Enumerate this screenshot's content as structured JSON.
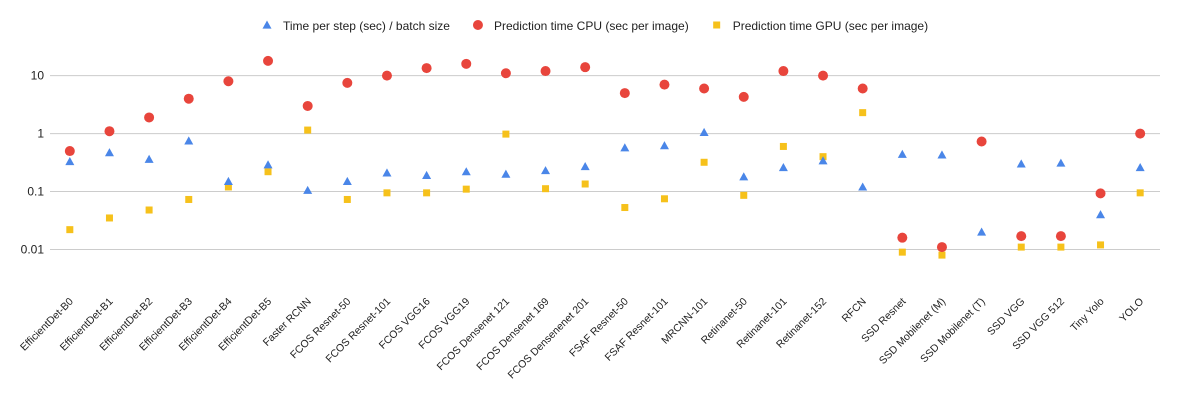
{
  "chart_data": {
    "type": "scatter",
    "title": "",
    "xlabel": "",
    "ylabel": "",
    "yscale": "log",
    "ylim": [
      0.002,
      30
    ],
    "yticks": [
      0.01,
      0.1,
      1,
      10
    ],
    "ytick_labels": [
      "0.01",
      "0.1",
      "1",
      "10"
    ],
    "grid": true,
    "legend_position": "top",
    "categories": [
      "EfficientDet-B0",
      "EfficientDet-B1",
      "EfficientDet-B2",
      "EfficientDet-B3",
      "EfficientDet-B4",
      "EfficientDet-B5",
      "Faster RCNN",
      "FCOS Resnet-50",
      "FCOS Resnet-101",
      "FCOS VGG16",
      "FCOS VGG19",
      "FCOS Densenet 121",
      "FCOS Densenet 169",
      "FCOS Densenenet 201",
      "FSAF Resnet-50",
      "FSAF Resnet-101",
      "MRCNN-101",
      "Retinanet-50",
      "Retinanet-101",
      "Retinanet-152",
      "RFCN",
      "SSD Resnet",
      "SSD Mobilenet (M)",
      "SSD Mobilenet (T)",
      "SSD VGG",
      "SSD VGG 512",
      "Tiny Yolo",
      "YOLO"
    ],
    "series": [
      {
        "name": "Time per step (sec) / batch size",
        "marker": "triangle",
        "color": "#4a86e8",
        "values": [
          0.33,
          0.47,
          0.36,
          0.75,
          0.15,
          0.29,
          0.105,
          0.15,
          0.21,
          0.19,
          0.22,
          0.2,
          0.23,
          0.27,
          0.57,
          0.62,
          1.05,
          0.18,
          0.26,
          0.34,
          0.12,
          0.44,
          0.43,
          0.02,
          0.3,
          0.31,
          0.04,
          0.26
        ]
      },
      {
        "name": "Prediction time CPU (sec per image)",
        "marker": "circle",
        "color": "#e8453c",
        "values": [
          0.5,
          1.1,
          1.9,
          4.0,
          8.0,
          18.0,
          3.0,
          7.5,
          10.0,
          13.5,
          16.0,
          11.0,
          12.0,
          14.0,
          5.0,
          7.0,
          6.0,
          4.3,
          12.0,
          10.0,
          6.0,
          0.016,
          0.011,
          0.73,
          0.017,
          0.017,
          0.093,
          1.0
        ]
      },
      {
        "name": "Prediction time GPU (sec per image)",
        "marker": "square",
        "color": "#f6c11b",
        "values": [
          0.022,
          0.035,
          0.048,
          0.073,
          0.12,
          0.22,
          1.15,
          0.073,
          0.095,
          0.095,
          0.11,
          0.98,
          0.112,
          0.135,
          0.053,
          0.075,
          0.32,
          0.086,
          0.6,
          0.4,
          2.3,
          0.009,
          0.008,
          0.73,
          0.011,
          0.011,
          0.012,
          0.095
        ]
      }
    ]
  }
}
